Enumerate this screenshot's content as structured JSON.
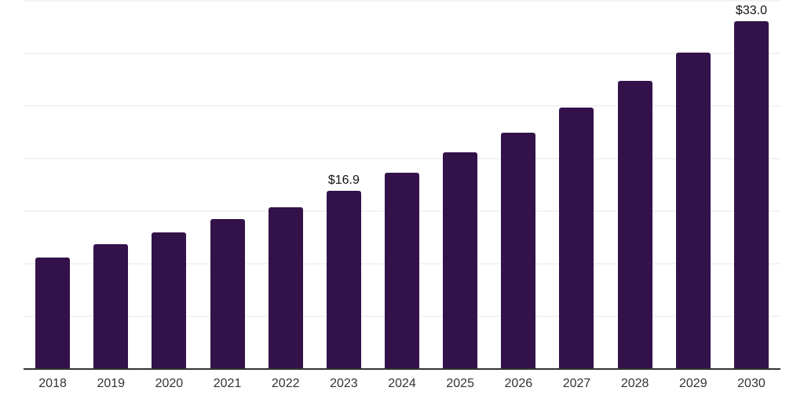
{
  "chart_data": {
    "type": "bar",
    "title": "",
    "xlabel": "",
    "ylabel": "",
    "categories": [
      "2018",
      "2019",
      "2020",
      "2021",
      "2022",
      "2023",
      "2024",
      "2025",
      "2026",
      "2027",
      "2028",
      "2029",
      "2030"
    ],
    "values": [
      10.5,
      11.8,
      12.9,
      14.2,
      15.3,
      16.9,
      18.6,
      20.5,
      22.4,
      24.8,
      27.3,
      30.0,
      33.0
    ],
    "annotations": [
      {
        "category": "2023",
        "text": "$16.9"
      },
      {
        "category": "2030",
        "text": "$33.0"
      }
    ],
    "ylim": [
      0,
      35
    ],
    "grid_step": 5,
    "grid": true,
    "y_tick_labels_visible": false,
    "legend": false,
    "colors": {
      "bar": "#33124a",
      "grid": "#f3f3f3",
      "axis": "#333333",
      "tick_label": "#333333",
      "annotation": "#111111",
      "background": "#ffffff"
    }
  }
}
